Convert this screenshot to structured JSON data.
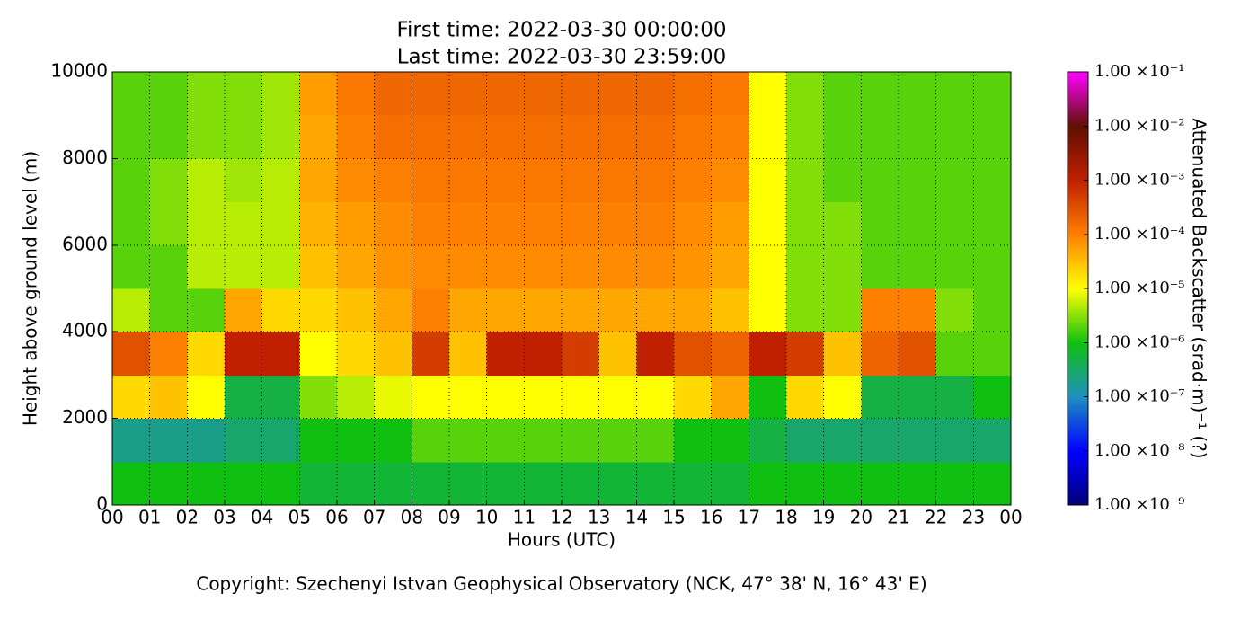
{
  "chart_data": {
    "type": "heatmap",
    "title_lines": [
      "First time: 2022-03-30 00:00:00",
      "Last time: 2022-03-30 23:59:00"
    ],
    "xlabel": "Hours (UTC)",
    "ylabel": "Height above ground level (m)",
    "colorbar_label": "Attenuated Backscatter (srad·m)⁻¹ (?)",
    "footer": "Copyright: Szechenyi Istvan Geophysical Observatory (NCK, 47° 38' N, 16° 43' E)",
    "x_bins": [
      0,
      1,
      2,
      3,
      4,
      5,
      6,
      7,
      8,
      9,
      10,
      11,
      12,
      13,
      14,
      15,
      16,
      17,
      18,
      19,
      20,
      21,
      22,
      23,
      24
    ],
    "y_bins": [
      0,
      1000,
      2000,
      3000,
      4000,
      5000,
      6000,
      7000,
      8000,
      9000,
      10000
    ],
    "xlim": [
      0,
      24
    ],
    "ylim": [
      0,
      10000
    ],
    "xticks": [
      {
        "value": 0,
        "label": "00"
      },
      {
        "value": 1,
        "label": "01"
      },
      {
        "value": 2,
        "label": "02"
      },
      {
        "value": 3,
        "label": "03"
      },
      {
        "value": 4,
        "label": "04"
      },
      {
        "value": 5,
        "label": "05"
      },
      {
        "value": 6,
        "label": "06"
      },
      {
        "value": 7,
        "label": "07"
      },
      {
        "value": 8,
        "label": "08"
      },
      {
        "value": 9,
        "label": "09"
      },
      {
        "value": 10,
        "label": "10"
      },
      {
        "value": 11,
        "label": "11"
      },
      {
        "value": 12,
        "label": "12"
      },
      {
        "value": 13,
        "label": "13"
      },
      {
        "value": 14,
        "label": "14"
      },
      {
        "value": 15,
        "label": "15"
      },
      {
        "value": 16,
        "label": "16"
      },
      {
        "value": 17,
        "label": "17"
      },
      {
        "value": 18,
        "label": "18"
      },
      {
        "value": 19,
        "label": "19"
      },
      {
        "value": 20,
        "label": "20"
      },
      {
        "value": 21,
        "label": "21"
      },
      {
        "value": 22,
        "label": "22"
      },
      {
        "value": 23,
        "label": "23"
      },
      {
        "value": 24,
        "label": "00"
      }
    ],
    "yticks": [
      0,
      2000,
      4000,
      6000,
      8000,
      10000
    ],
    "grid": true,
    "clim": [
      1e-09,
      0.1
    ],
    "clog": true,
    "colormap": [
      "#00007a",
      "#0000ff",
      "#1f8fbf",
      "#10c010",
      "#ffff00",
      "#ff8000",
      "#c02000",
      "#601000",
      "#ff00ff"
    ],
    "cticks": [
      {
        "value": 1e-09,
        "label": "1.00 ×10⁻⁹"
      },
      {
        "value": 1e-08,
        "label": "1.00 ×10⁻⁸"
      },
      {
        "value": 1e-07,
        "label": "1.00 ×10⁻⁷"
      },
      {
        "value": 1e-06,
        "label": "1.00 ×10⁻⁶"
      },
      {
        "value": 1e-05,
        "label": "1.00 ×10⁻⁵"
      },
      {
        "value": 0.0001,
        "label": "1.00 ×10⁻⁴"
      },
      {
        "value": 0.001,
        "label": "1.00 ×10⁻³"
      },
      {
        "value": 0.01,
        "label": "1.00 ×10⁻²"
      },
      {
        "value": 0.1,
        "label": "1.00 ×10⁻¹"
      }
    ],
    "z": [
      [
        1e-06,
        1e-06,
        1e-06,
        1e-06,
        1e-06,
        6e-07,
        6e-07,
        6e-07,
        6e-07,
        6e-07,
        6e-07,
        6e-07,
        6e-07,
        6e-07,
        6e-07,
        6e-07,
        6e-07,
        1e-06,
        1e-06,
        1e-06,
        1e-06,
        1e-06,
        1e-06,
        1e-06
      ],
      [
        2e-07,
        2e-07,
        2e-07,
        3e-07,
        3e-07,
        1e-06,
        1e-06,
        1e-06,
        2e-06,
        2e-06,
        2e-06,
        2e-06,
        2e-06,
        2e-06,
        2e-06,
        1e-06,
        1e-06,
        5e-07,
        3e-07,
        3e-07,
        3e-07,
        3e-07,
        3e-07,
        3e-07
      ],
      [
        2e-05,
        3e-05,
        1e-05,
        5e-07,
        5e-07,
        3e-06,
        5e-06,
        8e-06,
        1e-05,
        1e-05,
        1e-05,
        1e-05,
        1e-05,
        1e-05,
        1e-05,
        2e-05,
        5e-05,
        1e-06,
        2e-05,
        1e-05,
        5e-07,
        5e-07,
        5e-07,
        1e-06
      ],
      [
        0.0003,
        0.0001,
        2e-05,
        0.001,
        0.001,
        1e-05,
        2e-05,
        3e-05,
        0.0005,
        3e-05,
        0.001,
        0.001,
        0.0005,
        3e-05,
        0.001,
        0.0003,
        0.0002,
        0.001,
        0.0005,
        3e-05,
        0.0002,
        0.0003,
        2e-06,
        2e-06
      ],
      [
        5e-06,
        2e-06,
        2e-06,
        5e-05,
        2e-05,
        2e-05,
        3e-05,
        5e-05,
        0.0001,
        5e-05,
        5e-05,
        5e-05,
        5e-05,
        5e-05,
        5e-05,
        5e-05,
        3e-05,
        1e-05,
        3e-06,
        3e-06,
        0.0001,
        0.0001,
        3e-06,
        2e-06
      ],
      [
        2e-06,
        2e-06,
        5e-06,
        5e-06,
        5e-06,
        3e-05,
        5e-05,
        7e-05,
        8e-05,
        8e-05,
        8e-05,
        8e-05,
        8e-05,
        8e-05,
        8e-05,
        7e-05,
        5e-05,
        1e-05,
        3e-06,
        3e-06,
        2e-06,
        2e-06,
        2e-06,
        2e-06
      ],
      [
        2e-06,
        3e-06,
        5e-06,
        5e-06,
        5e-06,
        4e-05,
        6e-05,
        8e-05,
        0.0001,
        0.0001,
        0.0001,
        0.0001,
        0.0001,
        0.0001,
        0.0001,
        8e-05,
        6e-05,
        1e-05,
        3e-06,
        3e-06,
        2e-06,
        2e-06,
        2e-06,
        2e-06
      ],
      [
        2e-06,
        3e-06,
        5e-06,
        4e-06,
        5e-06,
        5e-05,
        8e-05,
        0.0001,
        0.00012,
        0.00012,
        0.00012,
        0.00012,
        0.00012,
        0.00012,
        0.00012,
        0.0001,
        8e-05,
        1e-05,
        3e-06,
        2e-06,
        2e-06,
        2e-06,
        2e-06,
        2e-06
      ],
      [
        2e-06,
        2e-06,
        3e-06,
        3e-06,
        4e-06,
        5e-05,
        0.0001,
        0.00015,
        0.00015,
        0.00015,
        0.00015,
        0.00015,
        0.00015,
        0.00015,
        0.00015,
        0.00012,
        0.0001,
        1e-05,
        3e-06,
        2e-06,
        2e-06,
        2e-06,
        2e-06,
        2e-06
      ],
      [
        2e-06,
        2e-06,
        3e-06,
        3e-06,
        4e-06,
        6e-05,
        0.00012,
        0.00018,
        0.00018,
        0.00018,
        0.00018,
        0.00018,
        0.00018,
        0.00018,
        0.00018,
        0.00015,
        0.00012,
        1e-05,
        3e-06,
        2e-06,
        2e-06,
        2e-06,
        2e-06,
        2e-06
      ]
    ]
  }
}
